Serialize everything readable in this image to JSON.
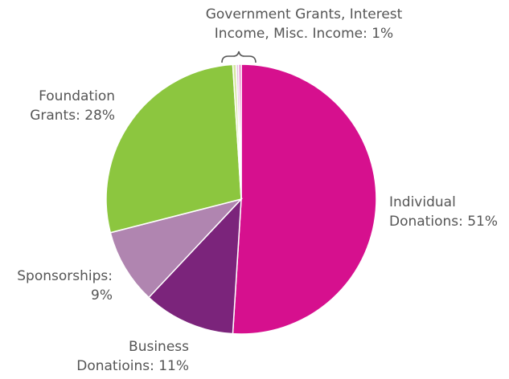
{
  "chart_data": {
    "type": "pie",
    "title": "",
    "start_angle_deg": 0,
    "direction": "clockwise",
    "slices": [
      {
        "label": "Individual Donations",
        "value": 51,
        "color": "#d6108e"
      },
      {
        "label": "Business Donatioins",
        "value": 11,
        "color": "#7b247b"
      },
      {
        "label": "Sponsorships",
        "value": 9,
        "color": "#b085b0"
      },
      {
        "label": "Foundation Grants",
        "value": 28,
        "color": "#8cc63f"
      },
      {
        "label": "Government Grants",
        "value": 0.4,
        "color": "#d6e8a3"
      },
      {
        "label": "Interest Income",
        "value": 0.3,
        "color": "#e3c3e3"
      },
      {
        "label": "Misc. Income",
        "value": 0.3,
        "color": "#e47ac0"
      }
    ]
  },
  "labels": {
    "individual": {
      "line1": "Individual",
      "line2": "Donations: 51%"
    },
    "business": {
      "line1": "Business",
      "line2": "Donatioins: 11%"
    },
    "sponsorships": {
      "line1": "Sponsorships:",
      "line2": "9%"
    },
    "foundation": {
      "line1": "Foundation",
      "line2": "Grants: 28%"
    },
    "other": {
      "line1": "Government Grants, Interest",
      "line2": "Income, Misc. Income: 1%"
    }
  }
}
